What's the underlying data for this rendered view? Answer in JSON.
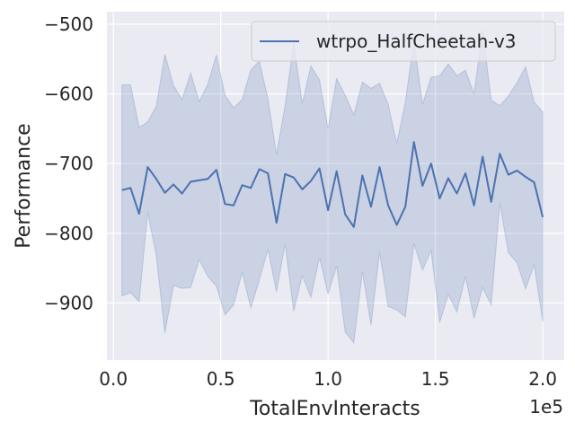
{
  "chart_data": {
    "type": "line",
    "xlabel": "TotalEnvInteracts",
    "ylabel": "Performance",
    "x_scale_label": "1e5",
    "xlim": [
      -0.03,
      2.1
    ],
    "ylim": [
      -982,
      -482
    ],
    "x_ticks": [
      0.0,
      0.5,
      1.0,
      1.5,
      2.0
    ],
    "x_tick_labels": [
      "0.0",
      "0.5",
      "1.0",
      "1.5",
      "2.0"
    ],
    "y_ticks": [
      -500,
      -600,
      -700,
      -800,
      -900
    ],
    "y_tick_labels": [
      "−500",
      "−600",
      "−700",
      "−800",
      "−900"
    ],
    "grid": true,
    "legend_position": "top-right",
    "colors": {
      "background": "#eaeaf2",
      "line": "#4c72b0",
      "band": "#4c72b0",
      "grid": "#ffffff"
    },
    "series": [
      {
        "name": "wtrpo_HalfCheetah-v3",
        "x": [
          0.04,
          0.08,
          0.12,
          0.16,
          0.2,
          0.24,
          0.28,
          0.32,
          0.36,
          0.4,
          0.44,
          0.48,
          0.52,
          0.56,
          0.6,
          0.64,
          0.68,
          0.72,
          0.76,
          0.8,
          0.84,
          0.88,
          0.92,
          0.96,
          1.0,
          1.04,
          1.08,
          1.12,
          1.16,
          1.2,
          1.24,
          1.28,
          1.32,
          1.36,
          1.4,
          1.44,
          1.48,
          1.52,
          1.56,
          1.6,
          1.64,
          1.68,
          1.72,
          1.76,
          1.8,
          1.84,
          1.88,
          1.92,
          1.96,
          2.0
        ],
        "mean": [
          -738,
          -735,
          -772,
          -705,
          -722,
          -742,
          -730,
          -743,
          -726,
          -724,
          -722,
          -709,
          -758,
          -760,
          -731,
          -735,
          -708,
          -714,
          -785,
          -715,
          -720,
          -737,
          -725,
          -707,
          -767,
          -711,
          -773,
          -791,
          -717,
          -762,
          -705,
          -760,
          -788,
          -762,
          -669,
          -732,
          -700,
          -750,
          -721,
          -743,
          -714,
          -760,
          -690,
          -755,
          -686,
          -716,
          -710,
          -719,
          -727,
          -777
        ],
        "upper": [
          -587,
          -587,
          -648,
          -640,
          -618,
          -543,
          -588,
          -608,
          -570,
          -611,
          -586,
          -544,
          -602,
          -620,
          -608,
          -566,
          -553,
          -607,
          -687,
          -617,
          -527,
          -614,
          -560,
          -580,
          -650,
          -578,
          -602,
          -630,
          -583,
          -592,
          -585,
          -615,
          -671,
          -612,
          -523,
          -615,
          -576,
          -574,
          -557,
          -574,
          -566,
          -600,
          -509,
          -609,
          -617,
          -603,
          -584,
          -561,
          -612,
          -626
        ],
        "lower": [
          -890,
          -885,
          -898,
          -770,
          -832,
          -943,
          -875,
          -879,
          -878,
          -838,
          -862,
          -876,
          -917,
          -903,
          -856,
          -907,
          -867,
          -823,
          -884,
          -815,
          -912,
          -861,
          -892,
          -835,
          -887,
          -847,
          -942,
          -957,
          -855,
          -932,
          -827,
          -905,
          -910,
          -920,
          -815,
          -853,
          -825,
          -928,
          -888,
          -913,
          -862,
          -922,
          -878,
          -903,
          -757,
          -828,
          -842,
          -880,
          -845,
          -927
        ]
      }
    ]
  }
}
